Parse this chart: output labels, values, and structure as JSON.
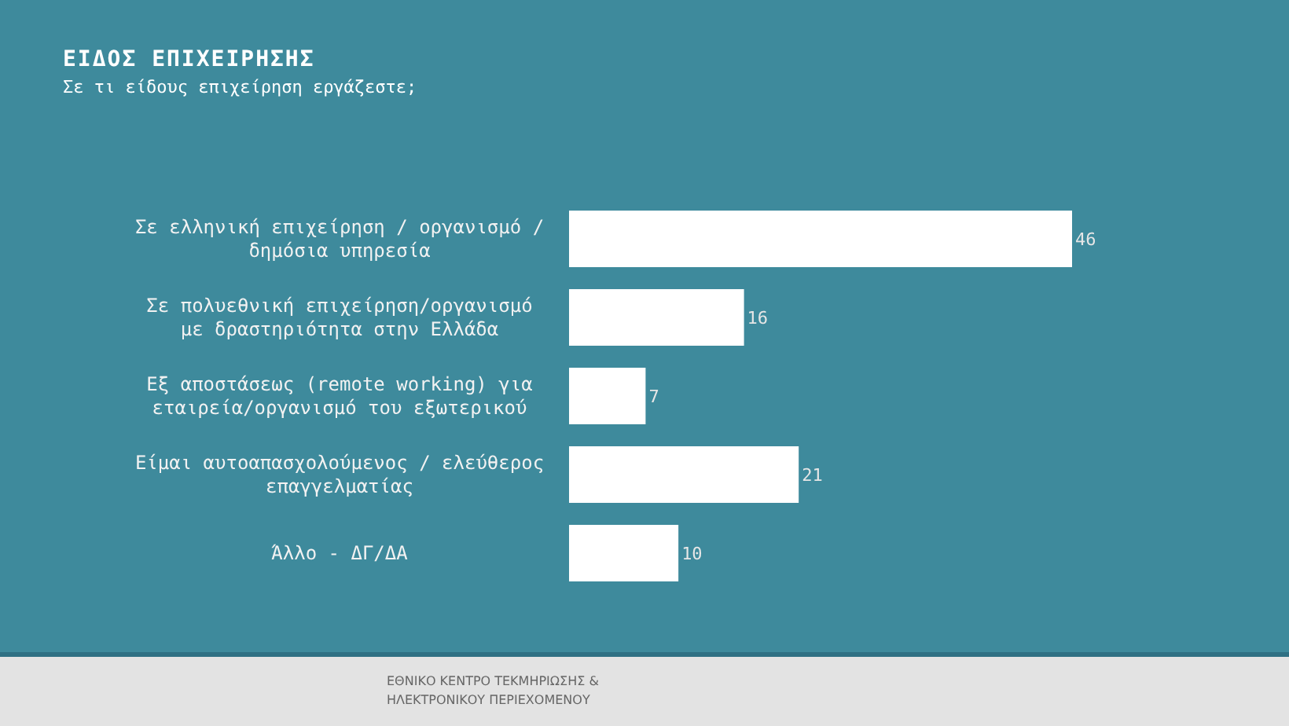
{
  "chart_data": {
    "type": "bar",
    "orientation": "horizontal",
    "title": "ΕΙΔΟΣ ΕΠΙΧΕΙΡΗΣΗΣ",
    "subtitle": "Σε τι είδους επιχείρηση εργάζεστε;",
    "categories": [
      "Σε ελληνική επιχείρηση / οργανισμό / δημόσια υπηρεσία",
      "Σε πολυεθνική επιχείρηση/οργανισμό με δραστηριότητα στην Ελλάδα",
      "Εξ αποστάσεως (remote working) για εταιρεία/οργανισμό του εξωτερικού",
      "Είμαι αυτοαπασχολούμενος / ελεύθερος επαγγελματίας",
      "Άλλο - ΔΓ/ΔΑ"
    ],
    "values": [
      46,
      16,
      7,
      21,
      10
    ],
    "color": "#ffffff",
    "data_labels": true,
    "annotations": [
      "ΕΘΝΙΚΟ ΚΕΝΤΡΟ ΤΕΚΜΗΡΙΩΣΗΣ & ΗΛΕΚΤΡΟΝΙΚΟΥ ΠΕΡΙΕΧΟΜΕΝΟΥ"
    ]
  }
}
